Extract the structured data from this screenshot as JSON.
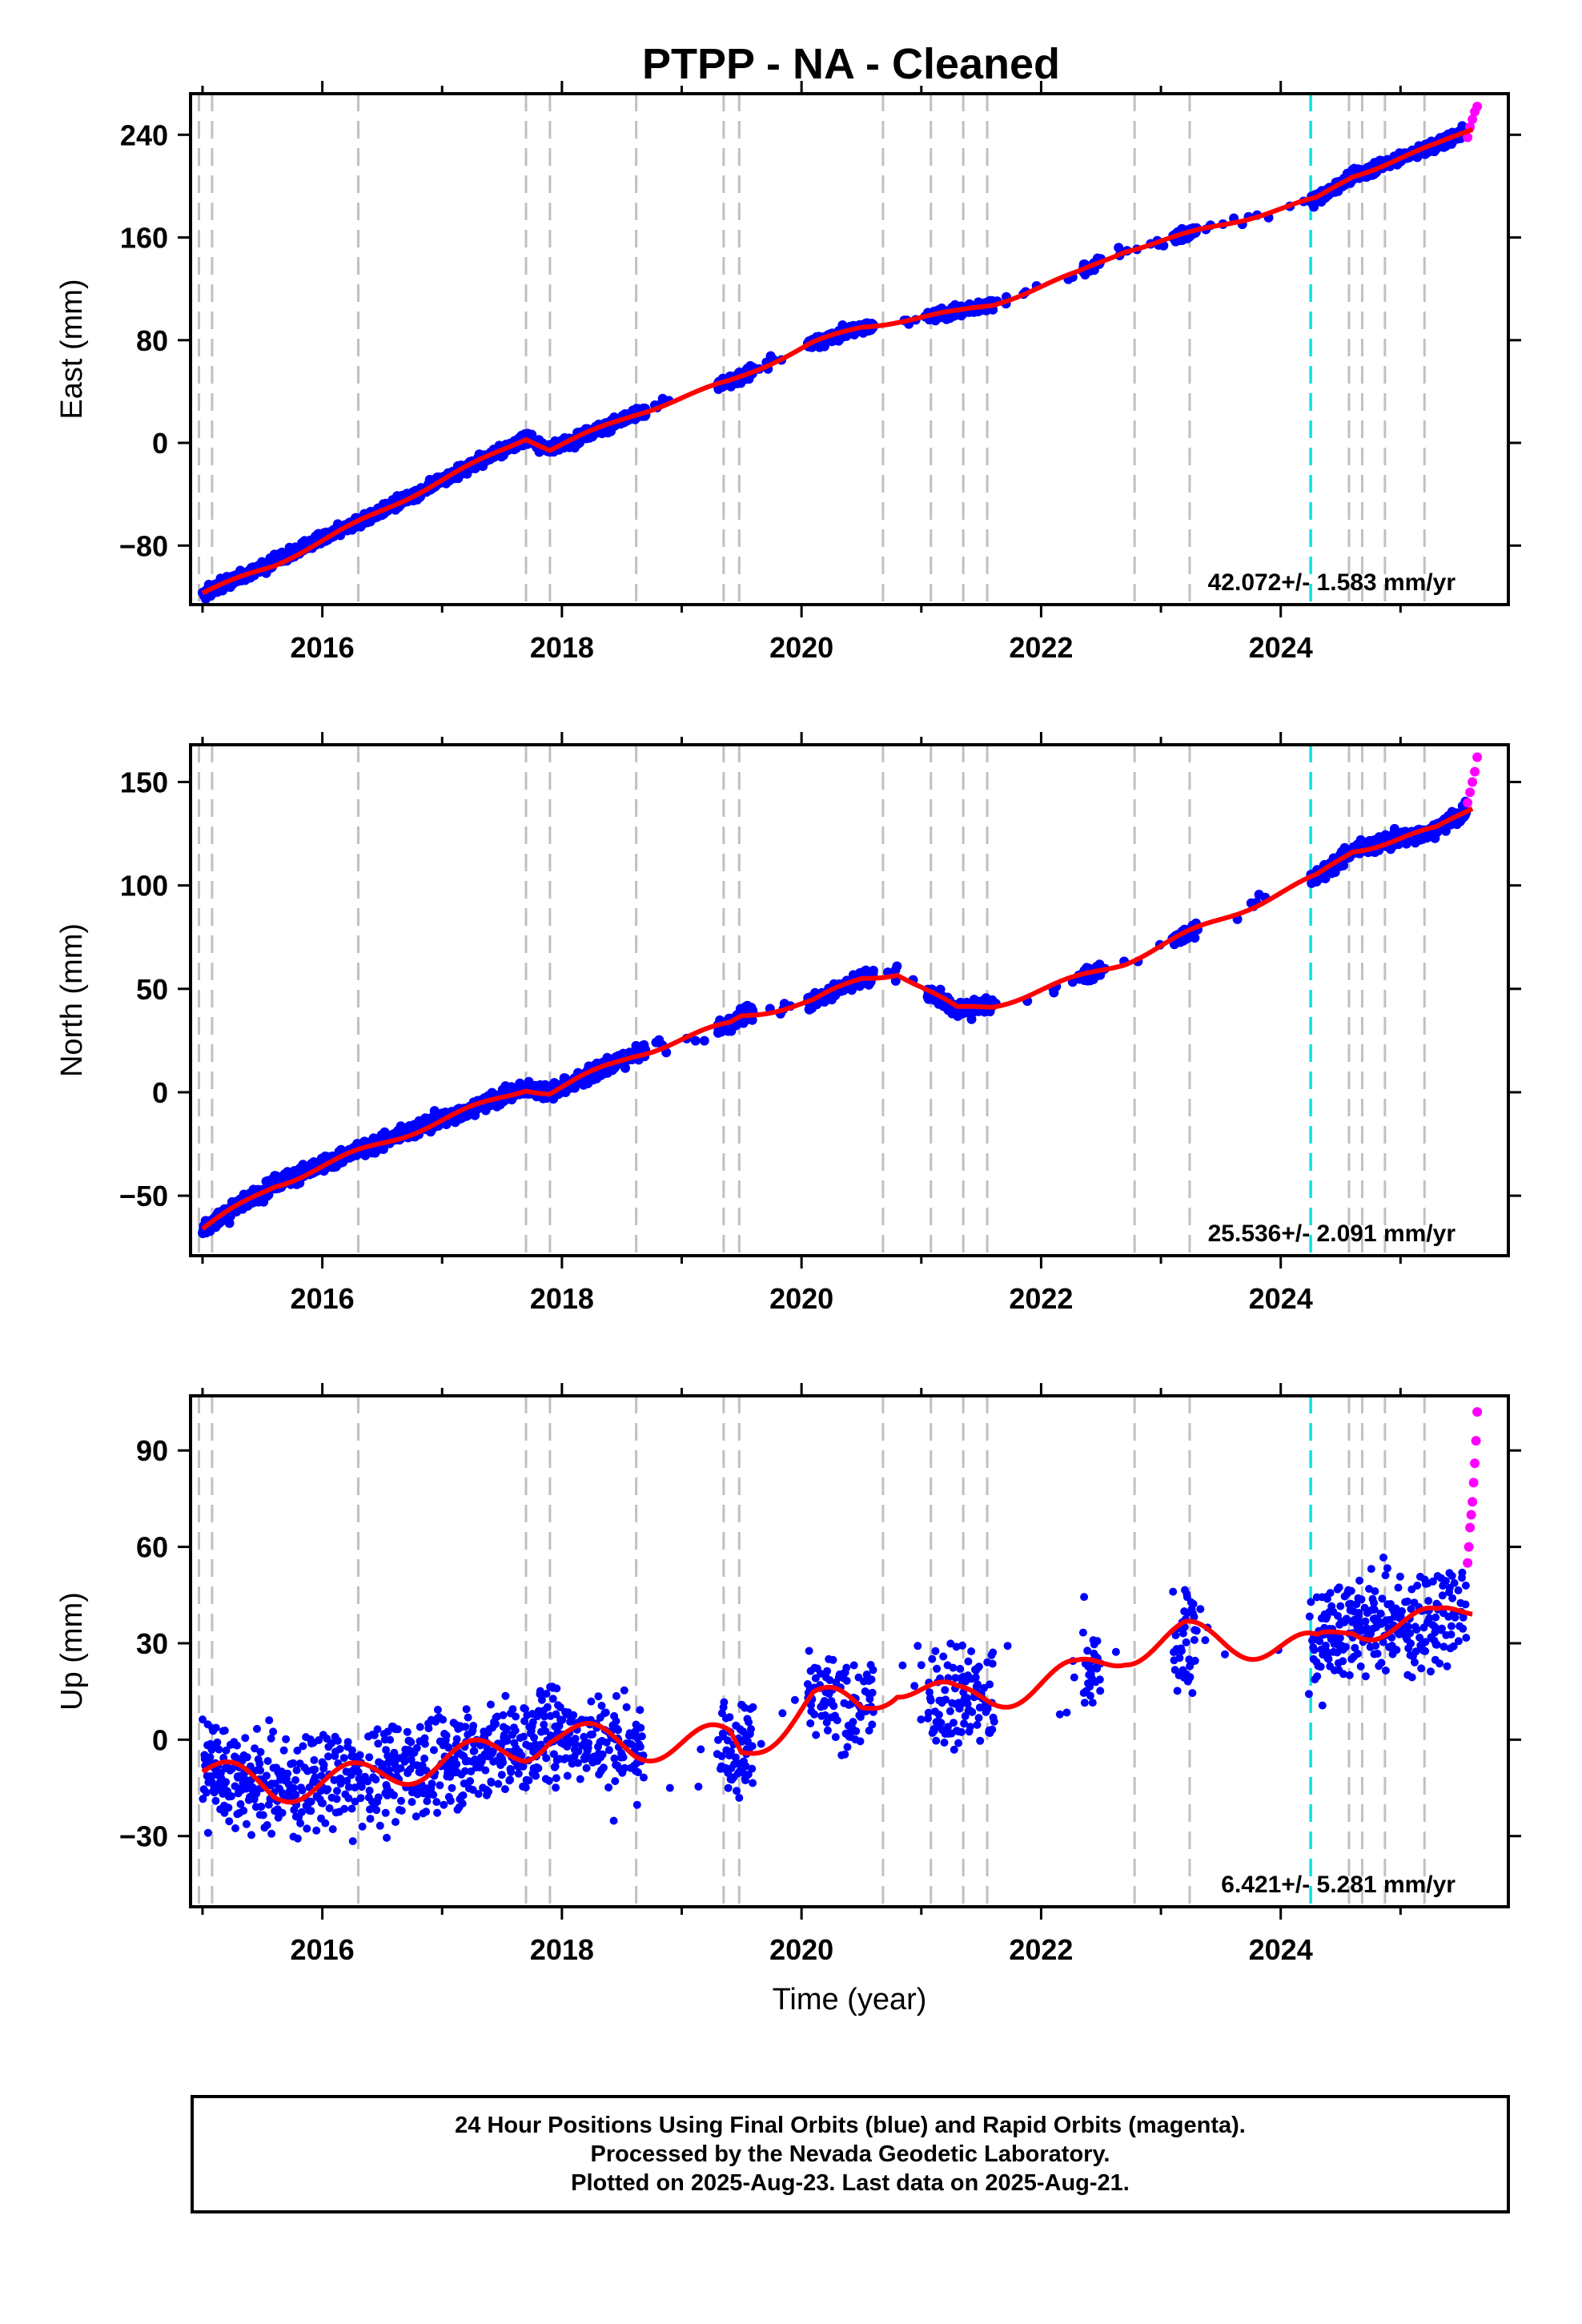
{
  "title": "PTPP  - NA - Cleaned",
  "colors": {
    "final": "#0000ff",
    "rapid": "#ff00ff",
    "model": "#ff0000",
    "event": "#c0c0c0",
    "antenna": "#00e5e5"
  },
  "chart_data": [
    {
      "type": "scatter",
      "ylabel": "East (mm)",
      "ylim": [
        -126,
        272
      ],
      "yticks": [
        -80,
        0,
        80,
        160,
        240
      ],
      "yticklabels": [
        "−80",
        "0",
        "80",
        "160",
        "240"
      ],
      "xlim": [
        2014.9,
        2025.9
      ],
      "xticks": [
        2016,
        2018,
        2020,
        2022,
        2024
      ],
      "xticklabels": [
        "2016",
        "2018",
        "2020",
        "2022",
        "2024"
      ],
      "xlabel": "",
      "rate_text": "42.072+/- 1.583 mm/yr",
      "velocity": 42.072,
      "scatter_sd": 3.0,
      "model_amp": 1.5,
      "series": [
        {
          "kind": "data",
          "x": [
            2015.0,
            2015.6,
            2016.3,
            2017.7,
            2017.9,
            2018.6,
            2019.4,
            2019.5,
            2020.1,
            2020.5,
            2020.8,
            2021.3,
            2021.6,
            2022.3,
            2022.7,
            2023.2,
            2024.3,
            2024.6,
            2025.3,
            2025.6
          ],
          "y": [
            -118,
            -92,
            -62,
            4,
            -5,
            22,
            48,
            52,
            78,
            90,
            95,
            102,
            108,
            132,
            150,
            162,
            190,
            208,
            232,
            245
          ]
        },
        {
          "kind": "model",
          "x": [
            2015.0,
            2015.6,
            2016.3,
            2017.7,
            2017.9,
            2018.6,
            2019.4,
            2019.5,
            2020.1,
            2020.5,
            2020.8,
            2021.3,
            2021.6,
            2022.3,
            2022.7,
            2023.2,
            2024.3,
            2024.6,
            2025.3,
            2025.6
          ],
          "y": [
            -117,
            -95,
            -62,
            4,
            -5,
            22,
            48,
            52,
            78,
            90,
            95,
            102,
            108,
            132,
            150,
            162,
            190,
            208,
            232,
            245
          ]
        }
      ],
      "rapid": {
        "x": [
          2025.56,
          2025.58,
          2025.6,
          2025.62,
          2025.64
        ],
        "y": [
          238,
          246,
          252,
          258,
          262
        ]
      }
    },
    {
      "type": "scatter",
      "ylabel": "North (mm)",
      "ylim": [
        -79,
        168
      ],
      "yticks": [
        -50,
        0,
        50,
        100,
        150
      ],
      "yticklabels": [
        "−50",
        "0",
        "50",
        "100",
        "150"
      ],
      "xlim": [
        2014.9,
        2025.9
      ],
      "xticks": [
        2016,
        2018,
        2020,
        2022,
        2024
      ],
      "xticklabels": [
        "2016",
        "2018",
        "2020",
        "2022",
        "2024"
      ],
      "xlabel": "",
      "rate_text": "25.536+/- 2.091 mm/yr",
      "velocity": 25.536,
      "scatter_sd": 2.5,
      "model_amp": 1.5,
      "series": [
        {
          "kind": "data",
          "x": [
            2015.0,
            2015.6,
            2016.3,
            2017.7,
            2017.9,
            2018.6,
            2019.4,
            2019.5,
            2020.1,
            2020.5,
            2020.8,
            2021.3,
            2021.6,
            2022.3,
            2022.7,
            2023.2,
            2024.3,
            2024.6,
            2025.3,
            2025.6
          ],
          "y": [
            -66,
            -44,
            -28,
            2,
            0,
            18,
            33,
            37,
            44,
            55,
            58,
            40,
            42,
            55,
            63,
            76,
            104,
            117,
            127,
            138
          ]
        },
        {
          "kind": "model",
          "x": [
            2015.0,
            2015.6,
            2016.3,
            2017.7,
            2017.9,
            2018.6,
            2019.4,
            2019.5,
            2020.1,
            2020.5,
            2020.8,
            2021.3,
            2021.6,
            2022.3,
            2022.7,
            2023.2,
            2024.3,
            2024.6,
            2025.3,
            2025.6
          ],
          "y": [
            -66,
            -45,
            -29,
            2,
            0,
            18,
            33,
            37,
            44,
            55,
            58,
            40,
            42,
            55,
            63,
            76,
            104,
            117,
            127,
            138
          ]
        }
      ],
      "rapid": {
        "x": [
          2025.56,
          2025.58,
          2025.6,
          2025.62,
          2025.64
        ],
        "y": [
          140,
          145,
          150,
          155,
          162
        ]
      }
    },
    {
      "type": "scatter",
      "ylabel": "Up (mm)",
      "ylim": [
        -52,
        107
      ],
      "yticks": [
        -30,
        0,
        30,
        60,
        90
      ],
      "yticklabels": [
        "−30",
        "0",
        "30",
        "60",
        "90"
      ],
      "xlim": [
        2014.9,
        2025.9
      ],
      "xticks": [
        2016,
        2018,
        2020,
        2022,
        2024
      ],
      "xticklabels": [
        "2016",
        "2018",
        "2020",
        "2022",
        "2024"
      ],
      "xlabel": "Time (year)",
      "rate_text": "6.421+/- 5.281 mm/yr",
      "velocity": 6.421,
      "scatter_sd": 9.0,
      "model_amp": 5,
      "series": [
        {
          "kind": "data",
          "x": [
            2015.0,
            2015.6,
            2016.3,
            2017.7,
            2017.9,
            2018.6,
            2019.4,
            2019.5,
            2020.1,
            2020.5,
            2020.8,
            2021.3,
            2021.6,
            2022.3,
            2022.7,
            2023.2,
            2024.3,
            2024.6,
            2025.3,
            2025.6
          ],
          "y": [
            -10,
            -15,
            -12,
            -2,
            2,
            -2,
            0,
            -4,
            12,
            10,
            18,
            12,
            14,
            20,
            28,
            32,
            28,
            36,
            36,
            42
          ]
        },
        {
          "kind": "model",
          "x": [
            2015.0,
            2015.6,
            2016.3,
            2017.7,
            2017.9,
            2018.6,
            2019.4,
            2019.5,
            2020.1,
            2020.5,
            2020.8,
            2021.3,
            2021.6,
            2022.3,
            2022.7,
            2023.2,
            2024.3,
            2024.6,
            2025.3,
            2025.6
          ],
          "y": [
            -10,
            -15,
            -12,
            -2,
            2,
            -2,
            0,
            -4,
            12,
            10,
            18,
            12,
            14,
            20,
            28,
            32,
            28,
            36,
            36,
            42
          ]
        }
      ],
      "rapid": {
        "x": [
          2025.56,
          2025.57,
          2025.58,
          2025.59,
          2025.6,
          2025.61,
          2025.62,
          2025.63,
          2025.64
        ],
        "y": [
          55,
          60,
          66,
          70,
          74,
          80,
          86,
          93,
          102
        ]
      }
    }
  ],
  "event_lines": [
    2014.97,
    2015.08,
    2016.3,
    2017.7,
    2017.9,
    2018.62,
    2019.35,
    2019.48,
    2020.68,
    2021.08,
    2021.35,
    2021.55,
    2022.78,
    2023.24,
    2024.57,
    2024.68,
    2024.87,
    2025.2
  ],
  "antenna_lines": [
    2024.25
  ],
  "footer": {
    "line1": "24 Hour Positions Using Final Orbits (blue) and Rapid Orbits (magenta).",
    "line2": "Processed by the Nevada Geodetic Laboratory.",
    "line3": "Plotted on 2025-Aug-23. Last data on 2025-Aug-21."
  }
}
